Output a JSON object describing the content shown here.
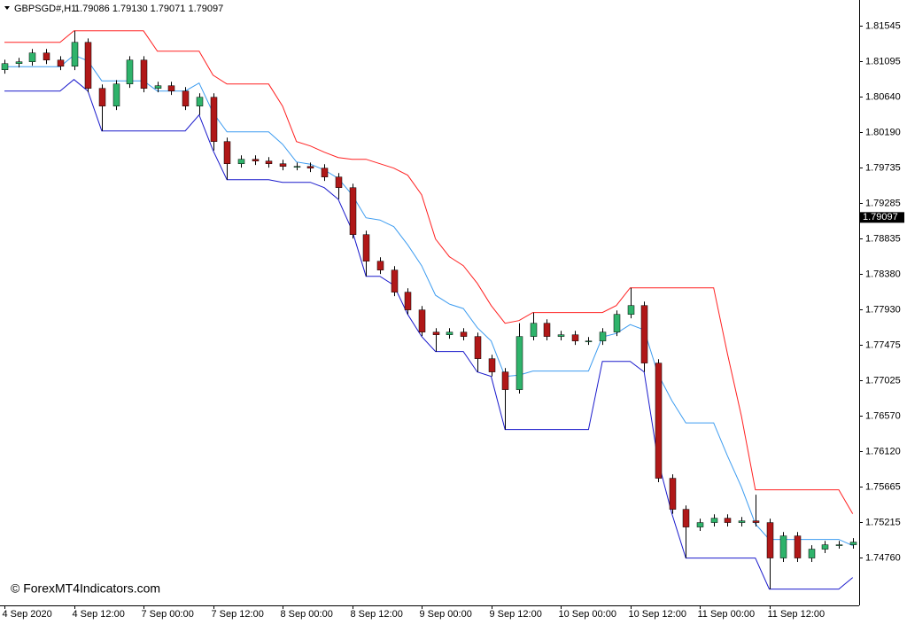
{
  "chart_data": {
    "type": "candlestick",
    "title": "GBPSGD#,H1",
    "quote": "1.79086 1.79130 1.79071 1.79097",
    "watermark": "© ForexMT4Indicators.com",
    "current_price": {
      "value": 1.79097,
      "label": "1.79097"
    },
    "ylim": [
      1.7415,
      1.8187
    ],
    "yticks": [
      1.81545,
      1.81095,
      {
        "value": 1.8064,
        "label": "1.80640"
      },
      {
        "value": 1.8019,
        "label": "1.80190"
      },
      1.79735,
      1.79285,
      1.78835,
      {
        "value": 1.7838,
        "label": "1.78380"
      },
      {
        "value": 1.7793,
        "label": "1.77930"
      },
      1.77475,
      1.77025,
      {
        "value": 1.7657,
        "label": "1.76570"
      },
      {
        "value": 1.7612,
        "label": "1.76120"
      },
      1.75665,
      1.75215,
      {
        "value": 1.7476,
        "label": "1.74760"
      }
    ],
    "categories": [
      "4 Sep 2020",
      null,
      null,
      null,
      null,
      "4 Sep 12:00",
      null,
      null,
      null,
      null,
      "7 Sep 00:00",
      null,
      null,
      null,
      null,
      "7 Sep 12:00",
      null,
      null,
      null,
      null,
      "8 Sep 00:00",
      null,
      null,
      null,
      null,
      "8 Sep 12:00",
      null,
      null,
      null,
      null,
      "9 Sep 00:00",
      null,
      null,
      null,
      null,
      "9 Sep 12:00",
      null,
      null,
      null,
      null,
      "10 Sep 00:00",
      null,
      null,
      null,
      null,
      "10 Sep 12:00",
      null,
      null,
      null,
      null,
      "11 Sep 00:00",
      null,
      null,
      null,
      null,
      "11 Sep 12:00",
      null,
      null,
      null,
      null,
      null,
      null
    ],
    "up_color": "#2fb36b",
    "down_color": "#b01818",
    "candles": {
      "open": [
        1.8098,
        1.81059,
        1.81082,
        1.81195,
        1.81104,
        1.81025,
        1.8133,
        1.80743,
        1.80517,
        1.80799,
        1.81104,
        1.80743,
        1.80777,
        1.80709,
        1.80517,
        1.8063,
        1.80065,
        1.79782,
        1.79839,
        1.79816,
        1.79782,
        1.79748,
        1.79748,
        1.79726,
        1.79613,
        1.79477,
        1.78878,
        1.78539,
        1.78426,
        1.78144,
        1.77918,
        1.77635,
        1.77601,
        1.77635,
        1.77579,
        1.77296,
        1.77127,
        1.76901,
        1.77579,
        1.77748,
        1.77579,
        1.77601,
        1.77522,
        1.77522,
        1.77635,
        1.77861,
        1.77974,
        1.7724,
        1.75771,
        1.75375,
        1.75149,
        1.75206,
        1.75262,
        1.75206,
        1.75228,
        1.75206,
        1.74754,
        1.75036,
        1.74754,
        1.74867,
        1.74923,
        1.74923
      ],
      "high": [
        1.81109,
        1.81132,
        1.81245,
        1.81245,
        1.81154,
        1.81477,
        1.8138,
        1.80793,
        1.80849,
        1.81154,
        1.81154,
        1.80827,
        1.80827,
        1.80759,
        1.8068,
        1.8068,
        1.80115,
        1.79889,
        1.79889,
        1.79866,
        1.79832,
        1.79798,
        1.79798,
        1.79776,
        1.79663,
        1.79527,
        1.78928,
        1.78589,
        1.78476,
        1.78194,
        1.77968,
        1.77685,
        1.77685,
        1.77685,
        1.77629,
        1.77346,
        1.77177,
        1.77748,
        1.77884,
        1.77798,
        1.77651,
        1.77651,
        1.77572,
        1.77685,
        1.77911,
        1.782,
        1.78024,
        1.7729,
        1.75821,
        1.75425,
        1.75256,
        1.75312,
        1.75312,
        1.75278,
        1.75562,
        1.75256,
        1.75086,
        1.75086,
        1.74917,
        1.74973,
        1.74973,
        1.75007
      ],
      "low": [
        1.8093,
        1.81009,
        1.81032,
        1.81054,
        1.80975,
        1.80975,
        1.80693,
        1.802,
        1.80467,
        1.80749,
        1.80693,
        1.80693,
        1.80659,
        1.80467,
        1.80404,
        1.79952,
        1.79579,
        1.79732,
        1.79766,
        1.79732,
        1.79698,
        1.79698,
        1.79676,
        1.79563,
        1.7933,
        1.78828,
        1.78347,
        1.78376,
        1.78094,
        1.77861,
        1.77585,
        1.77387,
        1.77551,
        1.77529,
        1.77127,
        1.7707,
        1.76392,
        1.76851,
        1.77529,
        1.77529,
        1.77529,
        1.77472,
        1.77472,
        1.77472,
        1.77585,
        1.77811,
        1.77127,
        1.75721,
        1.75319,
        1.74754,
        1.75099,
        1.75156,
        1.75156,
        1.75156,
        1.75156,
        1.74358,
        1.74704,
        1.74704,
        1.74704,
        1.74817,
        1.74873,
        1.74873
      ],
      "close": [
        1.81059,
        1.81082,
        1.81195,
        1.81104,
        1.81025,
        1.8133,
        1.80743,
        1.80517,
        1.80799,
        1.81104,
        1.80743,
        1.80777,
        1.80709,
        1.80517,
        1.8063,
        1.80065,
        1.79782,
        1.79839,
        1.79816,
        1.79782,
        1.79748,
        1.79748,
        1.79726,
        1.79613,
        1.79477,
        1.78878,
        1.78539,
        1.78426,
        1.78144,
        1.77918,
        1.77635,
        1.77601,
        1.77635,
        1.77579,
        1.77296,
        1.77127,
        1.76901,
        1.77579,
        1.77748,
        1.77579,
        1.77601,
        1.77522,
        1.77522,
        1.77635,
        1.77861,
        1.77974,
        1.7724,
        1.75771,
        1.75375,
        1.75149,
        1.75206,
        1.75262,
        1.75206,
        1.75228,
        1.75206,
        1.74754,
        1.75036,
        1.74754,
        1.74867,
        1.74923,
        1.74923,
        1.74957
      ]
    },
    "lines": [
      {
        "color": "#ff2020",
        "values": [
          1.8133,
          1.8133,
          1.8133,
          1.8133,
          1.8133,
          1.81477,
          1.81477,
          1.81477,
          1.81477,
          1.81477,
          1.81477,
          1.81217,
          1.81217,
          1.81217,
          1.81217,
          1.80912,
          1.80799,
          1.80799,
          1.80799,
          1.80799,
          1.80517,
          1.80065,
          1.80008,
          1.79929,
          1.79861,
          1.79839,
          1.79839,
          1.79782,
          1.79726,
          1.79635,
          1.79387,
          1.78822,
          1.78596,
          1.78483,
          1.78257,
          1.77974,
          1.77748,
          1.77782,
          1.77884,
          1.77884,
          1.77884,
          1.77884,
          1.77884,
          1.77884,
          1.77974,
          1.782,
          1.782,
          1.782,
          1.782,
          1.782,
          1.782,
          1.782,
          1.77353,
          1.76562,
          1.75624,
          1.75624,
          1.75624,
          1.75624,
          1.75624,
          1.75624,
          1.75624,
          1.75319
        ]
      },
      {
        "color": "#3d9cf0",
        "values": [
          1.8102,
          1.8102,
          1.8102,
          1.8102,
          1.8102,
          1.81167,
          1.81093,
          1.80839,
          1.80839,
          1.80839,
          1.80839,
          1.80709,
          1.80709,
          1.80709,
          1.80811,
          1.80432,
          1.80189,
          1.80189,
          1.80189,
          1.80189,
          1.80031,
          1.79805,
          1.79777,
          1.79703,
          1.79596,
          1.79387,
          1.79093,
          1.79065,
          1.7898,
          1.78748,
          1.78483,
          1.78105,
          1.77992,
          1.77935,
          1.77692,
          1.77522,
          1.7707,
          1.77087,
          1.77138,
          1.77138,
          1.77138,
          1.77138,
          1.77138,
          1.77573,
          1.77618,
          1.77731,
          1.77664,
          1.77099,
          1.7676,
          1.76477,
          1.76477,
          1.76477,
          1.76054,
          1.75658,
          1.75189,
          1.74991,
          1.74991,
          1.74991,
          1.74991,
          1.74991,
          1.74991,
          1.74912
        ]
      },
      {
        "color": "#1a1acc",
        "values": [
          1.80709,
          1.80709,
          1.80709,
          1.80709,
          1.80709,
          1.80856,
          1.80709,
          1.802,
          1.802,
          1.802,
          1.802,
          1.802,
          1.802,
          1.802,
          1.80404,
          1.79952,
          1.79579,
          1.79579,
          1.79579,
          1.79579,
          1.79545,
          1.79545,
          1.79545,
          1.79477,
          1.7933,
          1.78935,
          1.78347,
          1.78347,
          1.78234,
          1.77861,
          1.77579,
          1.77387,
          1.77387,
          1.77387,
          1.77127,
          1.7707,
          1.76392,
          1.76392,
          1.76392,
          1.76392,
          1.76392,
          1.76392,
          1.76392,
          1.77262,
          1.77262,
          1.77262,
          1.77127,
          1.75997,
          1.75319,
          1.74754,
          1.74754,
          1.74754,
          1.74754,
          1.74754,
          1.74754,
          1.74358,
          1.74358,
          1.74358,
          1.74358,
          1.74358,
          1.74358,
          1.74505
        ]
      }
    ]
  }
}
